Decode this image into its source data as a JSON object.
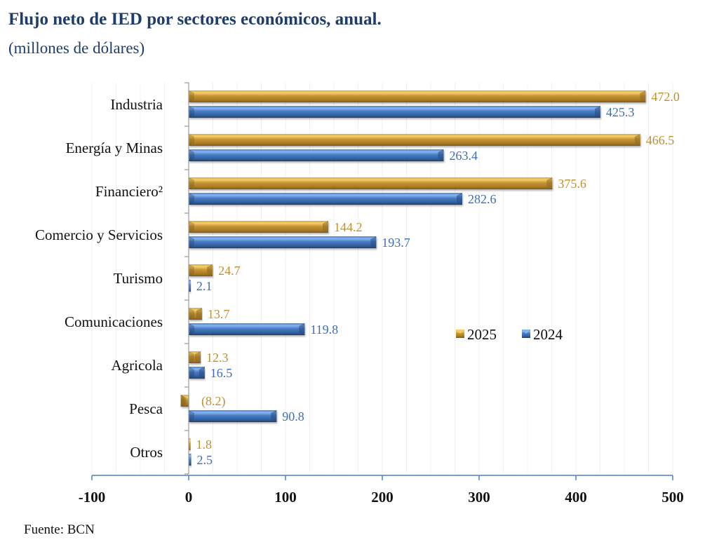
{
  "chart_data": {
    "type": "bar",
    "orientation": "horizontal",
    "title": "Flujo neto de IED por sectores económicos, anual.",
    "subtitle": "(millones de dólares)",
    "source": "Fuente: BCN",
    "xlabel": "",
    "ylabel": "",
    "xlim": [
      -100,
      500
    ],
    "xticks": [
      -100,
      0,
      100,
      200,
      300,
      400,
      500
    ],
    "grid": true,
    "legend_position": "center-right",
    "categories": [
      "Industria",
      "Energía y Minas",
      "Financiero²",
      "Comercio y Servicios",
      "Turismo",
      "Comunicaciones",
      "Agricola",
      "Pesca",
      "Otros"
    ],
    "series": [
      {
        "name": "2025",
        "color": "#c9962e",
        "label_color": "#c0902f",
        "values": [
          472.0,
          466.5,
          375.6,
          144.2,
          24.7,
          13.7,
          12.3,
          -8.2,
          1.8
        ],
        "labels": [
          "472.0",
          "466.5",
          "375.6",
          "144.2",
          "24.7",
          "13.7",
          "12.3",
          "(8.2)",
          "1.8"
        ]
      },
      {
        "name": "2024",
        "color": "#3d6eb5",
        "label_color": "#3d6eb5",
        "values": [
          425.3,
          263.4,
          282.6,
          193.7,
          2.1,
          119.8,
          16.5,
          90.8,
          2.5
        ],
        "labels": [
          "425.3",
          "263.4",
          "282.6",
          "193.7",
          "2.1",
          "119.8",
          "16.5",
          "90.8",
          "2.5"
        ]
      }
    ]
  }
}
